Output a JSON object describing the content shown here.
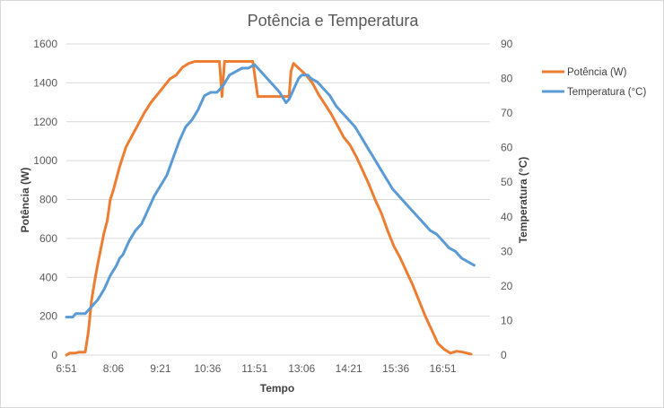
{
  "chart_data": {
    "type": "line",
    "title": "Potência e Temperatura",
    "xlabel": "Tempo",
    "ylabel": "Potência (W)",
    "y2label": "Temperatura (°C)",
    "ylim": [
      0,
      1600
    ],
    "y2lim": [
      0,
      90
    ],
    "yticks": [
      0,
      200,
      400,
      600,
      800,
      1000,
      1200,
      1400,
      1600
    ],
    "y2ticks": [
      0,
      10,
      20,
      30,
      40,
      50,
      60,
      70,
      80,
      90
    ],
    "x_range_minutes": [
      411,
      1086
    ],
    "xtick_labels": [
      "6:51",
      "8:06",
      "9:21",
      "10:36",
      "11:51",
      "13:06",
      "14:21",
      "15:36",
      "16:51"
    ],
    "xtick_minutes": [
      411,
      486,
      561,
      636,
      711,
      786,
      861,
      936,
      1011
    ],
    "grid": true,
    "legend_position": "right",
    "series": [
      {
        "name": "Potência (W)",
        "axis": "left",
        "color": "#ED7D31",
        "points": [
          [
            411,
            0
          ],
          [
            416,
            10
          ],
          [
            425,
            10
          ],
          [
            431,
            15
          ],
          [
            441,
            15
          ],
          [
            446,
            120
          ],
          [
            451,
            280
          ],
          [
            456,
            380
          ],
          [
            461,
            470
          ],
          [
            466,
            550
          ],
          [
            471,
            630
          ],
          [
            476,
            690
          ],
          [
            481,
            800
          ],
          [
            486,
            850
          ],
          [
            491,
            910
          ],
          [
            496,
            970
          ],
          [
            501,
            1020
          ],
          [
            506,
            1070
          ],
          [
            516,
            1130
          ],
          [
            526,
            1190
          ],
          [
            536,
            1250
          ],
          [
            546,
            1300
          ],
          [
            556,
            1340
          ],
          [
            566,
            1380
          ],
          [
            576,
            1420
          ],
          [
            586,
            1440
          ],
          [
            596,
            1480
          ],
          [
            606,
            1500
          ],
          [
            616,
            1510
          ],
          [
            641,
            1510
          ],
          [
            655,
            1510
          ],
          [
            659,
            1330
          ],
          [
            663,
            1510
          ],
          [
            680,
            1510
          ],
          [
            708,
            1510
          ],
          [
            716,
            1330
          ],
          [
            746,
            1330
          ],
          [
            766,
            1330
          ],
          [
            769,
            1460
          ],
          [
            773,
            1500
          ],
          [
            783,
            1470
          ],
          [
            793,
            1440
          ],
          [
            803,
            1400
          ],
          [
            813,
            1340
          ],
          [
            823,
            1290
          ],
          [
            833,
            1240
          ],
          [
            843,
            1180
          ],
          [
            853,
            1120
          ],
          [
            863,
            1080
          ],
          [
            873,
            1020
          ],
          [
            883,
            950
          ],
          [
            893,
            880
          ],
          [
            903,
            800
          ],
          [
            913,
            730
          ],
          [
            923,
            640
          ],
          [
            933,
            560
          ],
          [
            943,
            500
          ],
          [
            953,
            430
          ],
          [
            963,
            360
          ],
          [
            973,
            280
          ],
          [
            983,
            200
          ],
          [
            993,
            130
          ],
          [
            1003,
            60
          ],
          [
            1013,
            30
          ],
          [
            1023,
            10
          ],
          [
            1033,
            20
          ],
          [
            1043,
            15
          ],
          [
            1056,
            5
          ]
        ]
      },
      {
        "name": "Temperatura (°C)",
        "axis": "right",
        "color": "#5B9BD5",
        "points": [
          [
            411,
            11
          ],
          [
            421,
            11
          ],
          [
            426,
            12
          ],
          [
            441,
            12
          ],
          [
            451,
            14
          ],
          [
            461,
            16
          ],
          [
            471,
            19
          ],
          [
            476,
            21
          ],
          [
            481,
            23
          ],
          [
            491,
            26
          ],
          [
            496,
            28
          ],
          [
            501,
            29
          ],
          [
            511,
            33
          ],
          [
            521,
            36
          ],
          [
            531,
            38
          ],
          [
            541,
            42
          ],
          [
            551,
            46
          ],
          [
            561,
            49
          ],
          [
            571,
            52
          ],
          [
            581,
            57
          ],
          [
            591,
            62
          ],
          [
            601,
            66
          ],
          [
            611,
            68
          ],
          [
            621,
            71
          ],
          [
            631,
            75
          ],
          [
            641,
            76
          ],
          [
            651,
            76
          ],
          [
            661,
            78
          ],
          [
            671,
            81
          ],
          [
            681,
            82
          ],
          [
            691,
            83
          ],
          [
            701,
            83
          ],
          [
            711,
            84
          ],
          [
            721,
            82
          ],
          [
            731,
            80
          ],
          [
            741,
            78
          ],
          [
            751,
            76
          ],
          [
            761,
            73
          ],
          [
            766,
            74
          ],
          [
            771,
            76
          ],
          [
            776,
            78
          ],
          [
            781,
            80
          ],
          [
            786,
            81
          ],
          [
            796,
            81
          ],
          [
            801,
            80
          ],
          [
            811,
            79
          ],
          [
            821,
            77
          ],
          [
            831,
            75
          ],
          [
            841,
            72
          ],
          [
            851,
            70
          ],
          [
            861,
            68
          ],
          [
            871,
            66
          ],
          [
            881,
            63
          ],
          [
            891,
            60
          ],
          [
            901,
            57
          ],
          [
            911,
            54
          ],
          [
            921,
            51
          ],
          [
            931,
            48
          ],
          [
            941,
            46
          ],
          [
            951,
            44
          ],
          [
            961,
            42
          ],
          [
            971,
            40
          ],
          [
            981,
            38
          ],
          [
            991,
            36
          ],
          [
            1001,
            35
          ],
          [
            1011,
            33
          ],
          [
            1021,
            31
          ],
          [
            1031,
            30
          ],
          [
            1041,
            28
          ],
          [
            1051,
            27
          ],
          [
            1061,
            26
          ]
        ]
      }
    ]
  }
}
